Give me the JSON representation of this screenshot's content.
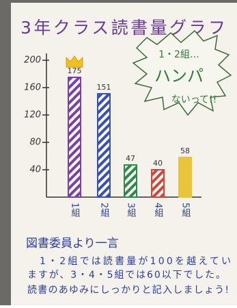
{
  "chart_data": {
    "type": "bar",
    "title": "3年クラス読書量グラフ",
    "categories": [
      "1組",
      "2組",
      "3組",
      "4組",
      "5組"
    ],
    "values": [
      175,
      151,
      47,
      40,
      58
    ],
    "colors": [
      "#7b3fa8",
      "#3a4fb0",
      "#2e8a4a",
      "#d0453c",
      "#e8c53a"
    ],
    "ylim": [
      0,
      210
    ],
    "yticks": [
      40,
      80,
      120,
      160,
      200
    ],
    "callout": [
      "1・2組…",
      "ハンパ",
      "ないって!!"
    ],
    "note_title": "図書委員より一言",
    "note_lines": [
      "1・2組では読書量が100を越えてい",
      "ますが、3・4・5組では60以下でした。",
      "読書のあゆみにしっかりと記入しましょう!"
    ]
  }
}
